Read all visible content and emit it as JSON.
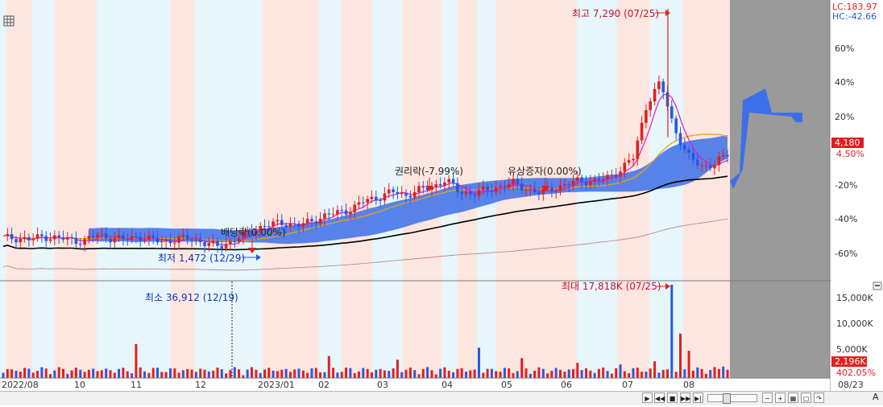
{
  "colors": {
    "up": "#e41e1e",
    "down": "#2b56e3",
    "ma5": "#d81fbf",
    "ma20": "#e8a317",
    "ma60": "#000000",
    "ma120": "#b08080",
    "cloud": "#3d6fea",
    "band_pink": "#fde6df",
    "band_blue": "#e6f6fb",
    "future_area": "#9a9a9a",
    "axis_panel": "#ffffff"
  },
  "header": {
    "lc_label": "LC:183.97",
    "hc_label": "HC:-42.66"
  },
  "price_axis": {
    "ticks": [
      "60%",
      "40%",
      "20%",
      "-20%",
      "-40%",
      "-60%"
    ],
    "current_price": "4,180",
    "current_change": "4.50%"
  },
  "volume_axis": {
    "ticks": [
      "15,000K",
      "10,000K",
      "5,000K"
    ],
    "current_volume": "2,196K",
    "current_change": "402.05%"
  },
  "x_axis": {
    "labels": [
      "2022/08",
      "10",
      "11",
      "12",
      "2023/01",
      "02",
      "03",
      "04",
      "05",
      "06",
      "07",
      "08",
      "08/23"
    ]
  },
  "annotations": {
    "price_high": "최고 7,290 (07/25)",
    "price_low": "최저 1,472 (12/29)",
    "volume_high": "최대 17,818K (07/25)",
    "volume_low": "최소 36,912 (12/19)",
    "dividend": "배당락(0.00%)",
    "rights": "권리락(-7.99%)",
    "rights_offering": "유상증자(0.00%)"
  },
  "toolbar": {
    "label_a": "A"
  },
  "chart_data": {
    "type": "candlestick",
    "period": "2022/08 - 2023/08/23",
    "price_high": 7290,
    "price_high_date": "07/25",
    "price_low": 1472,
    "price_low_date": "12/29",
    "last_close": 4180,
    "last_change_pct": 4.5,
    "volume_max_k": 17818,
    "volume_max_date": "07/25",
    "volume_min": 36912,
    "volume_min_date": "12/19",
    "last_volume_k": 2196,
    "last_volume_change_pct": 402.05,
    "price_axis_pct": [
      60,
      40,
      20,
      -20,
      -40,
      -60
    ],
    "volume_axis_k": [
      15000,
      10000,
      5000
    ],
    "events": [
      {
        "label": "배당락",
        "value_pct": 0.0
      },
      {
        "label": "권리락",
        "value_pct": -7.99
      },
      {
        "label": "유상증자",
        "value_pct": 0.0
      }
    ],
    "close_pct_by_period": [
      -51,
      -51,
      -52,
      -50,
      -51,
      -52,
      -53,
      -49,
      -51,
      -52,
      -50,
      -52,
      -53,
      -52,
      -51,
      -54,
      -56,
      -53,
      -49,
      -45,
      -43,
      -42,
      -44,
      -41,
      -38,
      -36,
      -34,
      -29,
      -27,
      -24,
      -26,
      -23,
      -21,
      -17,
      -24,
      -25,
      -23,
      -21,
      -19,
      -22,
      -25,
      -22,
      -20,
      -17,
      -18,
      -16,
      -11,
      -4,
      28,
      40,
      14,
      -3,
      -9,
      -8,
      -2
    ]
  }
}
